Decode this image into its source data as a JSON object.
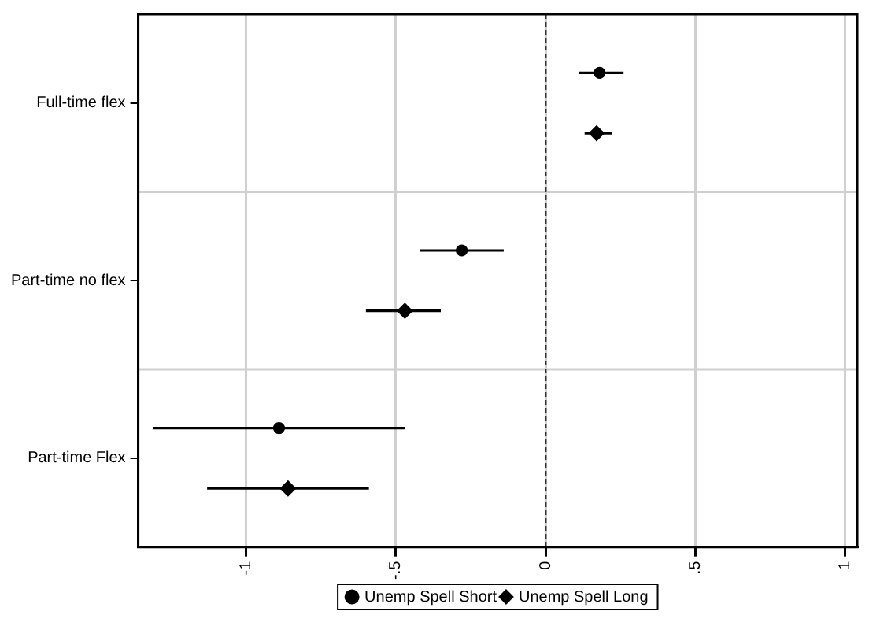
{
  "chart_data": {
    "type": "scatter",
    "orientation": "horizontal",
    "categories": [
      "Full-time flex",
      "Part-time no flex",
      "Part-time Flex"
    ],
    "series": [
      {
        "name": "Unemp Spell Short",
        "color": "#000000",
        "marker": "circle",
        "values": [
          0.18,
          -0.28,
          -0.89
        ],
        "errors": [
          [
            0.11,
            0.26
          ],
          [
            -0.42,
            -0.14
          ],
          [
            -1.31,
            -0.47
          ]
        ]
      },
      {
        "name": "Unemp Spell Long",
        "color": "#000000",
        "marker": "diamond",
        "values": [
          0.17,
          -0.47,
          -0.86
        ],
        "errors": [
          [
            0.13,
            0.22
          ],
          [
            -0.6,
            -0.35
          ],
          [
            -1.13,
            -0.59
          ]
        ]
      }
    ],
    "xlim": [
      -1.36,
      1.04
    ],
    "xticks": [
      {
        "value": -1,
        "label": "-1"
      },
      {
        "value": -0.5,
        "label": "-.5"
      },
      0,
      {
        "value": 0.5,
        "label": ".5"
      },
      1
    ],
    "ref_lines": [
      {
        "axis": "x",
        "value": 0,
        "color": "#333333",
        "line_style": "dashed"
      }
    ],
    "grid": true,
    "legend": "bottom"
  }
}
